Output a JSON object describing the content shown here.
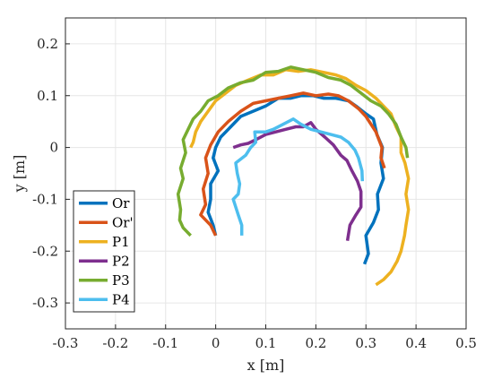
{
  "chart_data": {
    "type": "line",
    "xlabel": "x [m]",
    "ylabel": "y [m]",
    "xlim": [
      -0.3,
      0.5
    ],
    "ylim": [
      -0.35,
      0.25
    ],
    "xticks": [
      -0.3,
      -0.2,
      -0.1,
      0,
      0.1,
      0.2,
      0.3,
      0.4,
      0.5
    ],
    "xtick_labels": [
      "-0.3",
      "-0.2",
      "-0.1",
      "0",
      "0.1",
      "0.2",
      "0.3",
      "0.4",
      "0.5"
    ],
    "yticks": [
      -0.3,
      -0.2,
      -0.1,
      0,
      0.1,
      0.2
    ],
    "ytick_labels": [
      "-0.3",
      "-0.2",
      "-0.1",
      "0",
      "0.1",
      "0.2"
    ],
    "grid": true,
    "legend": "bottom-left",
    "series": [
      {
        "name": "Or",
        "color": "#0072BD",
        "points": [
          [
            0.297,
            -0.225
          ],
          [
            0.305,
            -0.205
          ],
          [
            0.3,
            -0.17
          ],
          [
            0.315,
            -0.145
          ],
          [
            0.325,
            -0.12
          ],
          [
            0.323,
            -0.09
          ],
          [
            0.335,
            -0.06
          ],
          [
            0.33,
            -0.03
          ],
          [
            0.333,
            0.0
          ],
          [
            0.322,
            0.025
          ],
          [
            0.315,
            0.055
          ],
          [
            0.3,
            0.065
          ],
          [
            0.28,
            0.08
          ],
          [
            0.265,
            0.09
          ],
          [
            0.24,
            0.095
          ],
          [
            0.215,
            0.095
          ],
          [
            0.195,
            0.1
          ],
          [
            0.17,
            0.1
          ],
          [
            0.15,
            0.095
          ],
          [
            0.125,
            0.095
          ],
          [
            0.1,
            0.08
          ],
          [
            0.075,
            0.07
          ],
          [
            0.05,
            0.06
          ],
          [
            0.03,
            0.04
          ],
          [
            0.01,
            0.02
          ],
          [
            0.0,
            0.0
          ],
          [
            -0.005,
            -0.02
          ],
          [
            0.005,
            -0.045
          ],
          [
            -0.01,
            -0.07
          ],
          [
            -0.01,
            -0.1
          ],
          [
            -0.015,
            -0.125
          ],
          [
            -0.005,
            -0.15
          ],
          [
            0.0,
            -0.17
          ]
        ]
      },
      {
        "name": "Or'",
        "color": "#D95319",
        "points": [
          [
            0.337,
            -0.04
          ],
          [
            0.33,
            -0.02
          ],
          [
            0.332,
            0.0
          ],
          [
            0.32,
            0.03
          ],
          [
            0.31,
            0.045
          ],
          [
            0.3,
            0.06
          ],
          [
            0.285,
            0.075
          ],
          [
            0.265,
            0.09
          ],
          [
            0.245,
            0.1
          ],
          [
            0.225,
            0.103
          ],
          [
            0.2,
            0.1
          ],
          [
            0.175,
            0.105
          ],
          [
            0.15,
            0.1
          ],
          [
            0.125,
            0.095
          ],
          [
            0.1,
            0.09
          ],
          [
            0.075,
            0.085
          ],
          [
            0.05,
            0.07
          ],
          [
            0.025,
            0.05
          ],
          [
            0.005,
            0.03
          ],
          [
            -0.01,
            0.005
          ],
          [
            -0.02,
            -0.02
          ],
          [
            -0.015,
            -0.05
          ],
          [
            -0.025,
            -0.08
          ],
          [
            -0.02,
            -0.11
          ],
          [
            -0.03,
            -0.13
          ],
          [
            -0.01,
            -0.15
          ],
          [
            0.0,
            -0.17
          ]
        ]
      },
      {
        "name": "P1",
        "color": "#EDB120",
        "points": [
          [
            0.32,
            -0.265
          ],
          [
            0.335,
            -0.255
          ],
          [
            0.35,
            -0.24
          ],
          [
            0.362,
            -0.22
          ],
          [
            0.37,
            -0.2
          ],
          [
            0.377,
            -0.17
          ],
          [
            0.38,
            -0.15
          ],
          [
            0.385,
            -0.12
          ],
          [
            0.38,
            -0.09
          ],
          [
            0.385,
            -0.06
          ],
          [
            0.378,
            -0.03
          ],
          [
            0.37,
            -0.01
          ],
          [
            0.37,
            0.02
          ],
          [
            0.36,
            0.04
          ],
          [
            0.35,
            0.065
          ],
          [
            0.335,
            0.08
          ],
          [
            0.32,
            0.095
          ],
          [
            0.3,
            0.11
          ],
          [
            0.28,
            0.12
          ],
          [
            0.26,
            0.133
          ],
          [
            0.24,
            0.14
          ],
          [
            0.215,
            0.145
          ],
          [
            0.19,
            0.15
          ],
          [
            0.165,
            0.147
          ],
          [
            0.14,
            0.15
          ],
          [
            0.115,
            0.14
          ],
          [
            0.09,
            0.14
          ],
          [
            0.065,
            0.13
          ],
          [
            0.04,
            0.12
          ],
          [
            0.02,
            0.105
          ],
          [
            0.0,
            0.09
          ],
          [
            -0.015,
            0.07
          ],
          [
            -0.03,
            0.05
          ],
          [
            -0.04,
            0.03
          ],
          [
            -0.045,
            0.01
          ],
          [
            -0.05,
            0.0
          ]
        ]
      },
      {
        "name": "P2",
        "color": "#7E2F8E",
        "points": [
          [
            0.263,
            -0.18
          ],
          [
            0.268,
            -0.15
          ],
          [
            0.28,
            -0.13
          ],
          [
            0.29,
            -0.115
          ],
          [
            0.29,
            -0.085
          ],
          [
            0.283,
            -0.065
          ],
          [
            0.272,
            -0.045
          ],
          [
            0.262,
            -0.025
          ],
          [
            0.25,
            -0.015
          ],
          [
            0.235,
            0.005
          ],
          [
            0.218,
            0.02
          ],
          [
            0.2,
            0.035
          ],
          [
            0.19,
            0.048
          ],
          [
            0.175,
            0.04
          ],
          [
            0.16,
            0.04
          ],
          [
            0.14,
            0.035
          ],
          [
            0.12,
            0.03
          ],
          [
            0.1,
            0.025
          ],
          [
            0.08,
            0.015
          ],
          [
            0.065,
            0.008
          ],
          [
            0.05,
            0.005
          ],
          [
            0.035,
            0.0
          ]
        ]
      },
      {
        "name": "P3",
        "color": "#77AC30",
        "points": [
          [
            0.383,
            -0.02
          ],
          [
            0.38,
            0.0
          ],
          [
            0.37,
            0.02
          ],
          [
            0.36,
            0.045
          ],
          [
            0.345,
            0.065
          ],
          [
            0.33,
            0.08
          ],
          [
            0.31,
            0.09
          ],
          [
            0.29,
            0.105
          ],
          [
            0.27,
            0.12
          ],
          [
            0.25,
            0.13
          ],
          [
            0.225,
            0.135
          ],
          [
            0.2,
            0.145
          ],
          [
            0.175,
            0.15
          ],
          [
            0.15,
            0.155
          ],
          [
            0.125,
            0.147
          ],
          [
            0.1,
            0.145
          ],
          [
            0.075,
            0.13
          ],
          [
            0.05,
            0.125
          ],
          [
            0.025,
            0.115
          ],
          [
            0.005,
            0.1
          ],
          [
            -0.015,
            0.09
          ],
          [
            -0.03,
            0.07
          ],
          [
            -0.045,
            0.055
          ],
          [
            -0.055,
            0.035
          ],
          [
            -0.065,
            0.015
          ],
          [
            -0.06,
            -0.01
          ],
          [
            -0.07,
            -0.04
          ],
          [
            -0.065,
            -0.06
          ],
          [
            -0.075,
            -0.09
          ],
          [
            -0.07,
            -0.12
          ],
          [
            -0.072,
            -0.14
          ],
          [
            -0.065,
            -0.155
          ],
          [
            -0.05,
            -0.17
          ]
        ]
      },
      {
        "name": "P4",
        "color": "#4DBEEE",
        "points": [
          [
            0.052,
            -0.17
          ],
          [
            0.052,
            -0.15
          ],
          [
            0.045,
            -0.13
          ],
          [
            0.035,
            -0.1
          ],
          [
            0.045,
            -0.09
          ],
          [
            0.048,
            -0.07
          ],
          [
            0.043,
            -0.05
          ],
          [
            0.04,
            -0.03
          ],
          [
            0.06,
            -0.015
          ],
          [
            0.07,
            0.0
          ],
          [
            0.08,
            0.01
          ],
          [
            0.078,
            0.03
          ],
          [
            0.1,
            0.03
          ],
          [
            0.115,
            0.035
          ],
          [
            0.135,
            0.045
          ],
          [
            0.155,
            0.055
          ],
          [
            0.17,
            0.045
          ],
          [
            0.19,
            0.035
          ],
          [
            0.21,
            0.03
          ],
          [
            0.23,
            0.025
          ],
          [
            0.25,
            0.02
          ],
          [
            0.265,
            0.01
          ],
          [
            0.278,
            -0.005
          ],
          [
            0.285,
            -0.02
          ],
          [
            0.292,
            -0.045
          ],
          [
            0.293,
            -0.065
          ]
        ]
      }
    ]
  }
}
